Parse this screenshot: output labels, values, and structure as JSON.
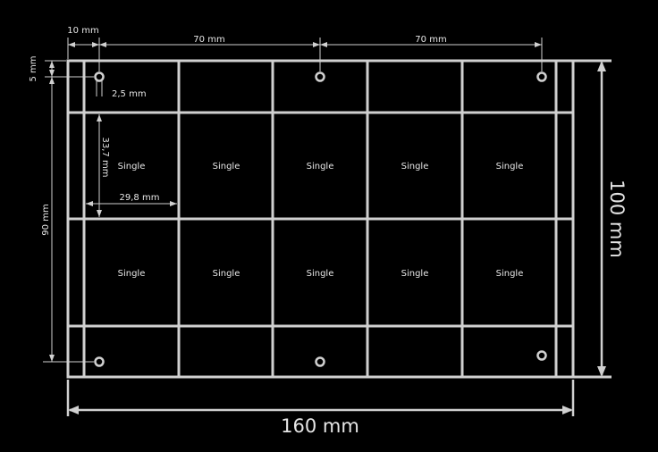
{
  "dimensions": {
    "left_margin": "10 mm",
    "pitch_1": "70 mm",
    "pitch_2": "70 mm",
    "top_margin": "5 mm",
    "hole_offset": "2,5 mm",
    "cell_height": "33,7 mm",
    "cell_width": "29,8 mm",
    "hole_span_vertical": "90 mm",
    "board_height": "100 mm",
    "board_width": "160 mm"
  },
  "cells": {
    "row1": [
      "Single",
      "Single",
      "Single",
      "Single",
      "Single"
    ],
    "row2": [
      "Single",
      "Single",
      "Single",
      "Single",
      "Single"
    ]
  },
  "colors": {
    "background": "#000000",
    "lines": "#d0d0d0",
    "text": "#e6e6e6"
  }
}
